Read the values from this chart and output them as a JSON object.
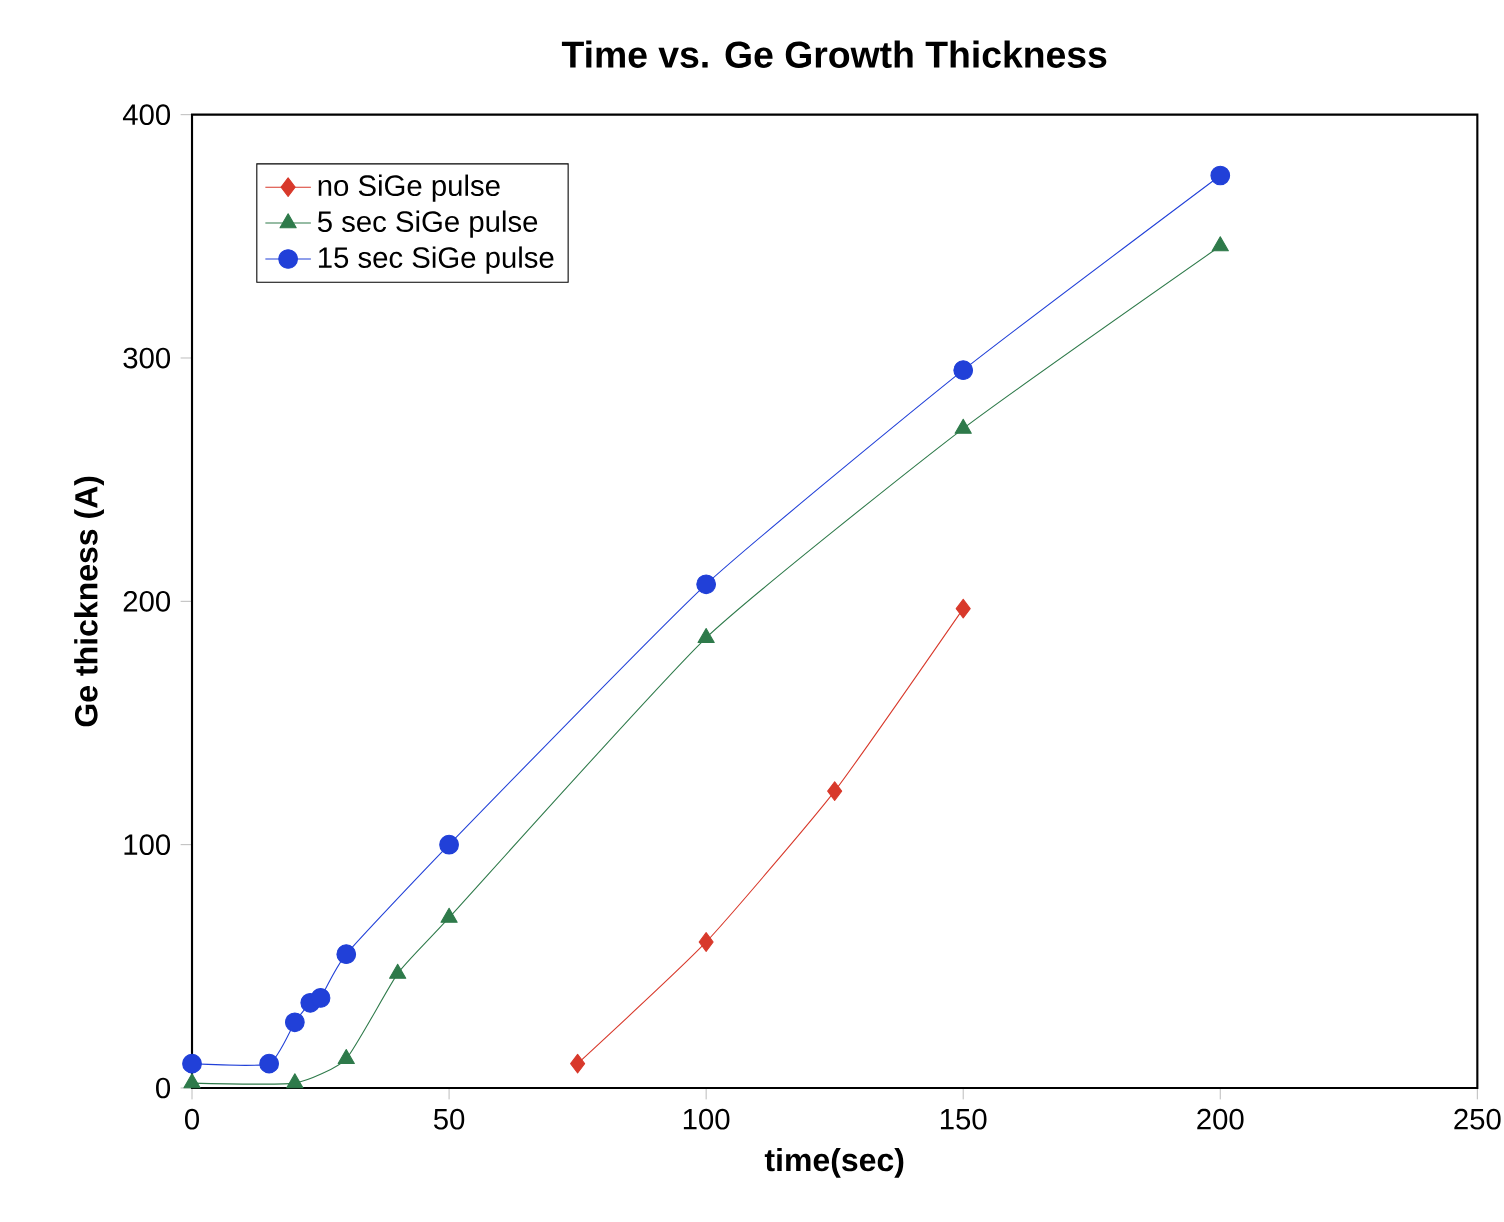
{
  "chart_data": {
    "type": "line",
    "title": "Time vs. Ge Growth Thickness",
    "xlabel": "time(sec)",
    "ylabel": "Ge thickness (A)",
    "xlim": [
      0,
      250
    ],
    "xticks": [
      0,
      50,
      100,
      150,
      200,
      250
    ],
    "ylim": [
      0,
      400
    ],
    "yticks": [
      0,
      100,
      200,
      300,
      400
    ],
    "legend": "top left",
    "grid": false,
    "series": [
      {
        "name": "no SiGe pulse",
        "color": "#d8392b",
        "marker": "diamond",
        "x": [
          75,
          100,
          125,
          150
        ],
        "values": [
          10,
          60,
          122,
          197
        ]
      },
      {
        "name": "5 sec SiGe pulse",
        "color": "#2e7a4a",
        "marker": "triangle",
        "x": [
          0,
          20,
          30,
          40,
          50,
          100,
          150,
          200
        ],
        "values": [
          2,
          2,
          12,
          47,
          70,
          185,
          271,
          346
        ]
      },
      {
        "name": "15 sec SiGe pulse",
        "color": "#2140d8",
        "marker": "circle",
        "x": [
          0,
          15,
          20,
          23,
          25,
          30,
          50,
          100,
          150,
          200
        ],
        "values": [
          10,
          10,
          27,
          35,
          37,
          55,
          100,
          207,
          295,
          375
        ]
      }
    ]
  }
}
